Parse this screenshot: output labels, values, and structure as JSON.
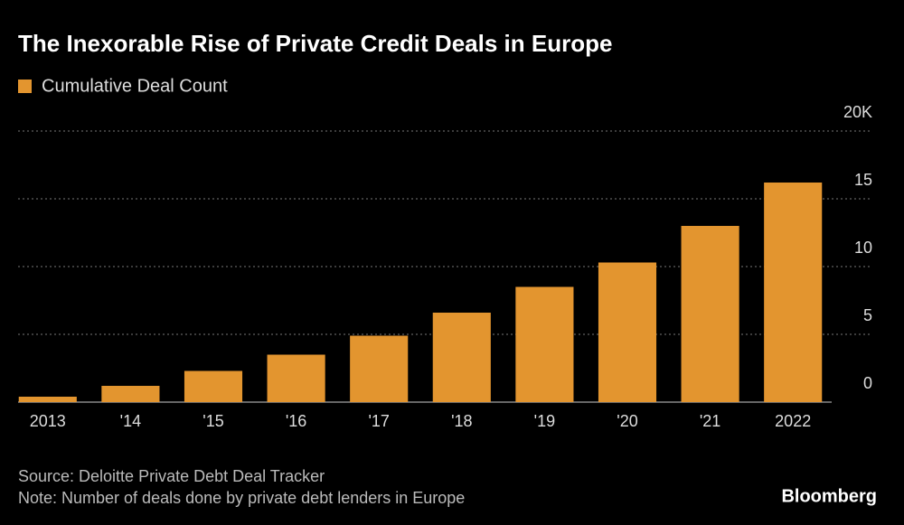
{
  "chart_data": {
    "type": "bar",
    "title": "The Inexorable Rise of Private Credit Deals in Europe",
    "series": [
      {
        "name": "Cumulative Deal Count",
        "color": "#e3952f",
        "values": [
          400,
          1200,
          2300,
          3500,
          4900,
          6600,
          8500,
          10300,
          13000,
          16200
        ]
      }
    ],
    "categories": [
      "2013",
      "'14",
      "'15",
      "'16",
      "'17",
      "'18",
      "'19",
      "'20",
      "'21",
      "2022"
    ],
    "ylim": [
      0,
      20000
    ],
    "yticks": [
      0,
      {
        "value": 5000,
        "label": "5"
      },
      {
        "value": 10000,
        "label": "10"
      },
      {
        "value": 15000,
        "label": "15"
      },
      {
        "value": 20000,
        "label": "20K"
      }
    ],
    "grid": true,
    "source": "Source: Deloitte Private Debt Deal Tracker",
    "note": "Note: Number of deals done by private debt lenders in Europe",
    "brand": "Bloomberg"
  }
}
